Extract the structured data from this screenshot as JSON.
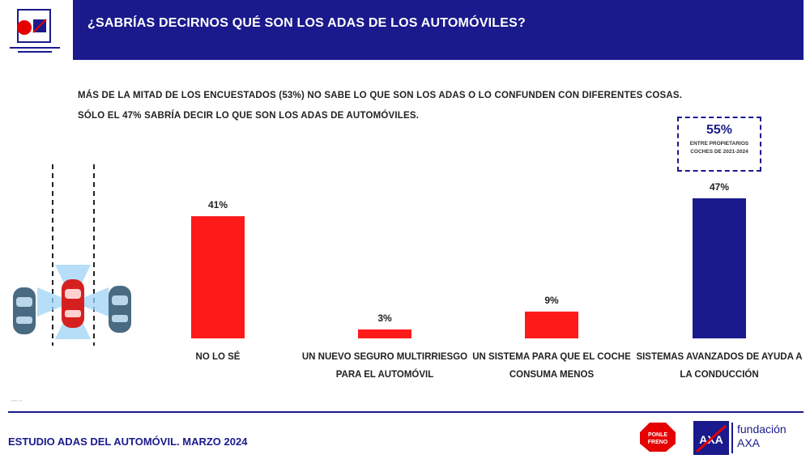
{
  "header": {
    "title": "¿SABRÍAS DECIRNOS QUÉ SON LOS ADAS DE LOS AUTOMÓVILES?",
    "logo_text": "AXA"
  },
  "subtitle": {
    "line1": "MÁS DE LA MITAD DE LOS ENCUESTADOS (53%) NO SABE LO QUE SON LOS ADAS O LO CONFUNDEN CON DIFERENTES COSAS.",
    "line2": "SÓLO EL 47% SABRÍA DECIR LO QUE SON LOS ADAS DE AUTOMÓVILES."
  },
  "highlight": {
    "value": "55%",
    "note": "ENTRE PROPIETARIOS COCHES DE 2021-2024"
  },
  "colors": {
    "navy": "#1a1a8c",
    "red": "#ff1a1a"
  },
  "icons": [
    "cars-adas-illustration-icon",
    "ponle-freno-logo-icon",
    "axa-logo-icon"
  ],
  "chart_data": {
    "type": "bar",
    "categories": [
      "NO LO SÉ",
      "UN NUEVO SEGURO MULTIRRIESGO PARA EL AUTOMÓVIL",
      "UN SISTEMA PARA QUE EL COCHE CONSUMA MENOS",
      "SISTEMAS AVANZADOS DE AYUDA A LA CONDUCCIÓN"
    ],
    "category_lines": [
      [
        "NO LO SÉ"
      ],
      [
        "UN NUEVO SEGURO MULTIRRIESGO",
        "PARA EL AUTOMÓVIL"
      ],
      [
        "UN SISTEMA PARA QUE EL COCHE",
        "CONSUMA MENOS"
      ],
      [
        "SISTEMAS AVANZADOS DE AYUDA A",
        "LA CONDUCCIÓN"
      ]
    ],
    "values": [
      41,
      3,
      9,
      47
    ],
    "value_labels": [
      "41%",
      "3%",
      "9%",
      "47%"
    ],
    "bar_colors": [
      "#ff1a1a",
      "#ff1a1a",
      "#ff1a1a",
      "#1a1a8c"
    ],
    "ylim": [
      0,
      47
    ],
    "grid": false,
    "title": "",
    "xlabel": "",
    "ylabel": ""
  },
  "footer": {
    "study": "ESTUDIO ADAS DEL AUTOMÓVIL. MARZO 2024",
    "brand_line1": "fundación",
    "brand_line2": "AXA"
  }
}
